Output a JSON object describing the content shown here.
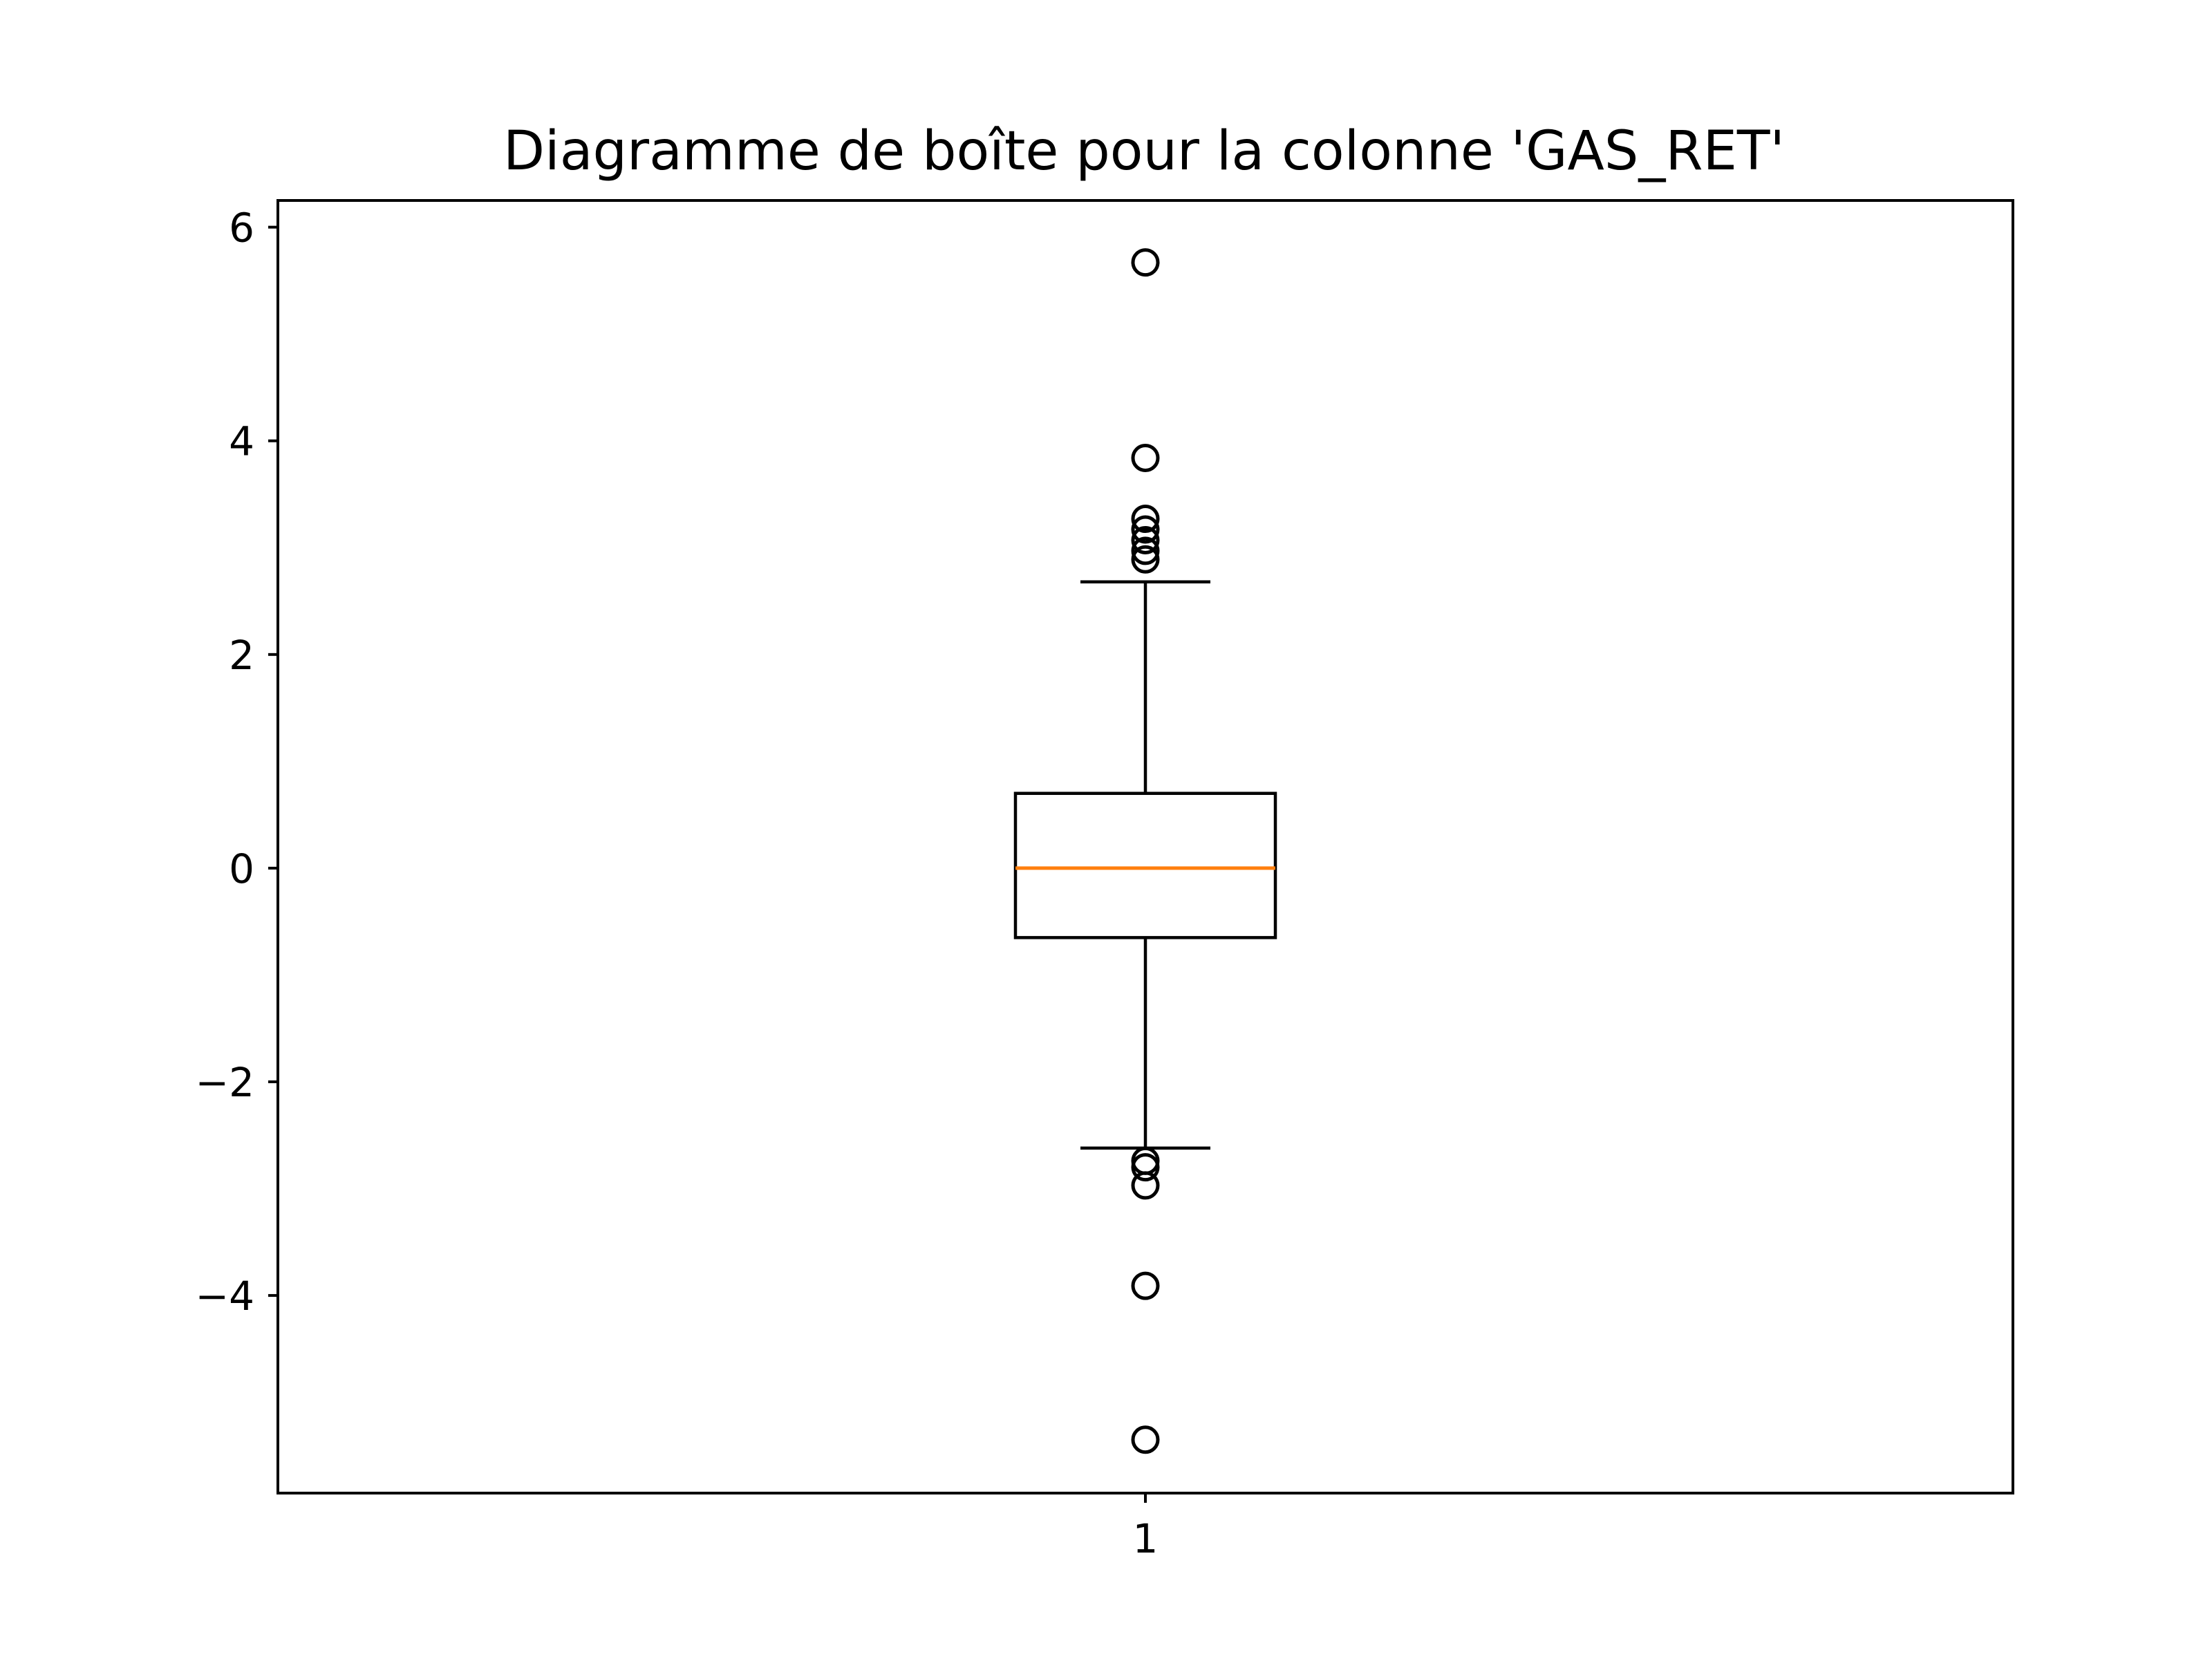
{
  "chart_data": {
    "type": "boxplot",
    "title": "Diagramme de boîte pour la colonne 'GAS_RET'",
    "xlabel": "",
    "ylabel": "",
    "categories": [
      "1"
    ],
    "ylim": [
      -5.85,
      6.25
    ],
    "yticks": [
      6,
      4,
      2,
      0,
      -2,
      -4
    ],
    "ytick_labels": [
      "6",
      "4",
      "2",
      "0",
      "−2",
      "−4"
    ],
    "grid": false,
    "boxes": [
      {
        "category": "1",
        "whisker_low": -2.62,
        "q1": -0.65,
        "median": 0.0,
        "q3": 0.7,
        "whisker_high": 2.68,
        "outliers": [
          5.67,
          3.84,
          3.27,
          3.17,
          3.07,
          2.97,
          2.89,
          -2.74,
          -2.8,
          -2.97,
          -3.91,
          -5.35
        ]
      }
    ],
    "colors": {
      "box": "#000000",
      "median": "#ff7f0e",
      "outlier": "#000000"
    }
  }
}
